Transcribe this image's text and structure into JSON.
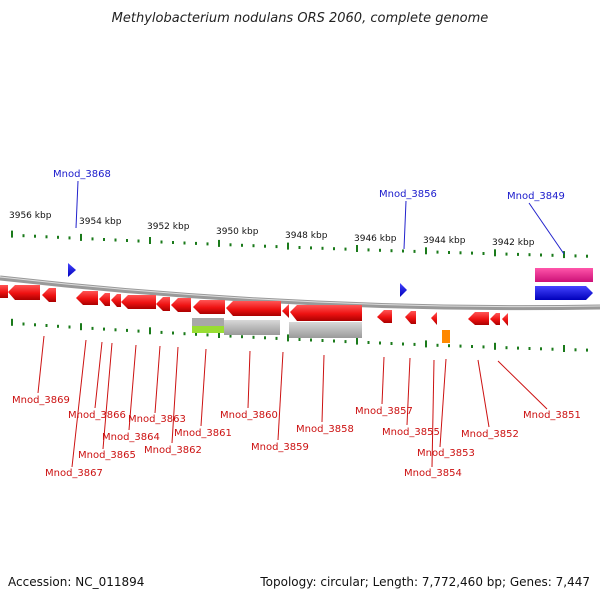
{
  "title": "Methylobacterium nodulans ORS 2060, complete genome",
  "scale_labels": [
    "3956 kbp",
    "3954 kbp",
    "3952 kbp",
    "3950 kbp",
    "3948 kbp",
    "3946 kbp",
    "3944 kbp",
    "3942 kbp"
  ],
  "top_genes": [
    "Mnod_3868",
    "Mnod_3856",
    "Mnod_3849"
  ],
  "bottom_genes": [
    "Mnod_3869",
    "Mnod_3867",
    "Mnod_3866",
    "Mnod_3865",
    "Mnod_3864",
    "Mnod_3863",
    "Mnod_3862",
    "Mnod_3861",
    "Mnod_3860",
    "Mnod_3859",
    "Mnod_3858",
    "Mnod_3857",
    "Mnod_3855",
    "Mnod_3853",
    "Mnod_3854",
    "Mnod_3852",
    "Mnod_3851"
  ],
  "colors": {
    "forward_feature": "#1111dd",
    "reverse_feature": "#ee1111",
    "highlight_pink": "#ee2288",
    "highlight_blue": "#1111ee",
    "grey_block": "#b0b0b0",
    "green_block": "#99dd33",
    "orange_block": "#ff8800",
    "scale_ticks": "#1a7a1a",
    "backbone": "#888888"
  },
  "footer": {
    "accession": "Accession: NC_011894",
    "topology": "Topology: circular; Length: 7,772,460 bp; Genes: 7,447"
  }
}
